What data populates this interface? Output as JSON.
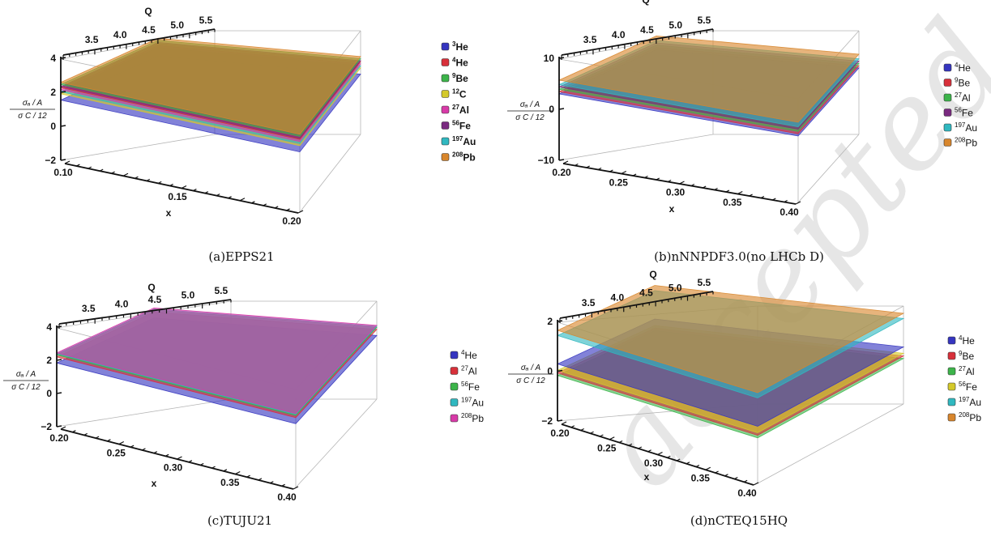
{
  "watermark": "accepted",
  "chart_data": [
    {
      "type": "surface3d",
      "caption": "(a)EPPS21",
      "q_label": "Q",
      "x_label": "x",
      "q_ticks": [
        "3.5",
        "4.0",
        "4.5",
        "5.0",
        "5.5"
      ],
      "x_ticks": [
        "0.10",
        "0.15",
        "0.20"
      ],
      "z_ticks": [
        "4",
        "2",
        "0",
        "−2"
      ],
      "z_label_top": "σ_A^sub / A",
      "z_label_bottom": "σ_C^sub / 12",
      "zlim": [
        -2,
        4
      ],
      "legend_bold": true,
      "series": [
        {
          "name": "3He",
          "mass": "3",
          "element": "He",
          "color": "#3535c0",
          "value": 0.3
        },
        {
          "name": "4He",
          "mass": "4",
          "element": "He",
          "color": "#d8303a",
          "value": 1.5
        },
        {
          "name": "9Be",
          "mass": "9",
          "element": "Be",
          "color": "#3cb44a",
          "value": 1.8
        },
        {
          "name": "12C",
          "mass": "12",
          "element": "C",
          "color": "#d4c92a",
          "value": 0.9
        },
        {
          "name": "27Al",
          "mass": "27",
          "element": "Al",
          "color": "#d83aa8",
          "value": 1.3
        },
        {
          "name": "56Fe",
          "mass": "56",
          "element": "Fe",
          "color": "#7a2a80",
          "value": 1.6
        },
        {
          "name": "197Au",
          "mass": "197",
          "element": "Au",
          "color": "#30b8c0",
          "value": 1.1
        },
        {
          "name": "208Pb",
          "mass": "208",
          "element": "Pb",
          "color": "#d8862c",
          "value": 2.0
        }
      ]
    },
    {
      "type": "surface3d",
      "caption": "(b)nNNPDF3.0(no LHCb D)",
      "q_label": "Q",
      "x_label": "x",
      "q_ticks": [
        "3.5",
        "4.0",
        "4.5",
        "5.0",
        "5.5"
      ],
      "x_ticks": [
        "0.20",
        "0.25",
        "0.30",
        "0.35",
        "0.40"
      ],
      "z_ticks": [
        "10",
        "0",
        "−10"
      ],
      "z_label_top": "σ_A^sub / A",
      "z_label_bottom": "σ_C^sub / 12",
      "zlim": [
        -12,
        15
      ],
      "legend_bold": false,
      "series": [
        {
          "name": "4He",
          "mass": "4",
          "element": "He",
          "color": "#3535c0",
          "value": 1
        },
        {
          "name": "9Be",
          "mass": "9",
          "element": "Be",
          "color": "#d8303a",
          "value": 2
        },
        {
          "name": "27Al",
          "mass": "27",
          "element": "Al",
          "color": "#3cb44a",
          "value": 3
        },
        {
          "name": "56Fe",
          "mass": "56",
          "element": "Fe",
          "color": "#7a2a80",
          "value": 4
        },
        {
          "name": "197Au",
          "mass": "197",
          "element": "Au",
          "color": "#30b8c0",
          "value": 5
        },
        {
          "name": "208Pb",
          "mass": "208",
          "element": "Pb",
          "color": "#d8862c",
          "value": 7
        }
      ]
    },
    {
      "type": "surface3d",
      "caption": "(c)TUJU21",
      "q_label": "Q",
      "x_label": "x",
      "q_ticks": [
        "3.5",
        "4.0",
        "4.5",
        "5.0",
        "5.5"
      ],
      "x_ticks": [
        "0.20",
        "0.25",
        "0.30",
        "0.35",
        "0.40"
      ],
      "z_ticks": [
        "4",
        "2",
        "0",
        "−2"
      ],
      "z_label_top": "σ_A^sub / A",
      "z_label_bottom": "σ_C^sub / 12",
      "zlim": [
        -2,
        4
      ],
      "legend_bold": false,
      "series": [
        {
          "name": "4He",
          "mass": "4",
          "element": "He",
          "color": "#3535c0",
          "value": 0.7
        },
        {
          "name": "27Al",
          "mass": "27",
          "element": "Al",
          "color": "#d8303a",
          "value": 1.3
        },
        {
          "name": "56Fe",
          "mass": "56",
          "element": "Fe",
          "color": "#3cb44a",
          "value": 1.5
        },
        {
          "name": "197Au",
          "mass": "197",
          "element": "Au",
          "color": "#30b8c0",
          "value": 1.6
        },
        {
          "name": "208Pb",
          "mass": "208",
          "element": "Pb",
          "color": "#d83aa8",
          "value": 1.7
        }
      ]
    },
    {
      "type": "surface3d",
      "caption": "(d)nCTEQ15HQ",
      "q_label": "Q",
      "x_label": "x",
      "q_ticks": [
        "3.5",
        "4.0",
        "4.5",
        "5.0",
        "5.5"
      ],
      "x_ticks": [
        "0.20",
        "0.25",
        "0.30",
        "0.35",
        "0.40"
      ],
      "z_ticks": [
        "2",
        "0",
        "−2"
      ],
      "z_label_top": "σ_A^sub / A",
      "z_label_bottom": "σ_C^sub / 12",
      "zlim": [
        -2.2,
        2.5
      ],
      "legend_bold": false,
      "series": [
        {
          "name": "4He",
          "mass": "4",
          "element": "He",
          "color": "#3535c0",
          "value": -0.6
        },
        {
          "name": "9Be",
          "mass": "9",
          "element": "Be",
          "color": "#d8303a",
          "value": -1.3
        },
        {
          "name": "27Al",
          "mass": "27",
          "element": "Al",
          "color": "#3cb44a",
          "value": -1.5
        },
        {
          "name": "56Fe",
          "mass": "56",
          "element": "Fe",
          "color": "#d4c92a",
          "value": -1.1
        },
        {
          "name": "197Au",
          "mass": "197",
          "element": "Au",
          "color": "#30b8c0",
          "value": 1.6
        },
        {
          "name": "208Pb",
          "mass": "208",
          "element": "Pb",
          "color": "#d8862c",
          "value": 2.0
        }
      ]
    }
  ]
}
